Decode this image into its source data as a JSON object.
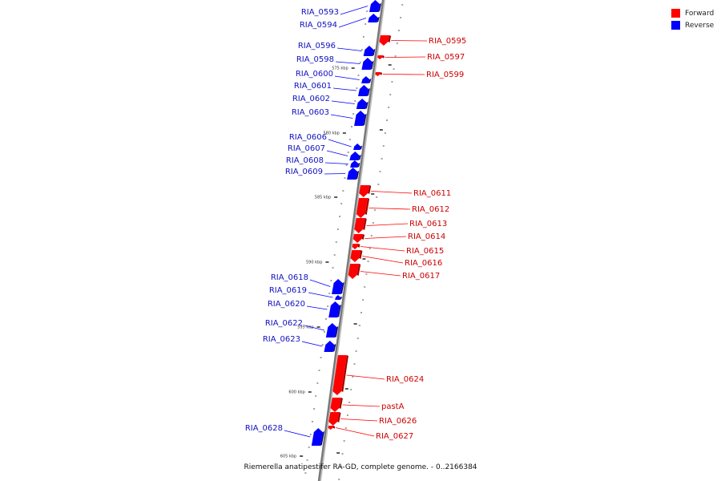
{
  "legend": {
    "forward_label": "Forward",
    "reverse_label": "Reverse",
    "forward_color": "#ff0000",
    "reverse_color": "#0000ff"
  },
  "caption": "Riemerella anatipestifer RA-GD, complete genome. - 0..2166384",
  "ticks": [
    {
      "label": "575 kbp"
    },
    {
      "label": "580 kbp"
    },
    {
      "label": "585 kbp"
    },
    {
      "label": "590 kbp"
    },
    {
      "label": "595 kbp"
    },
    {
      "label": "600 kbp"
    },
    {
      "label": "605 kbp"
    }
  ],
  "genes": [
    {
      "name": "RIA_0593",
      "strand": "reverse"
    },
    {
      "name": "RIA_0594",
      "strand": "reverse"
    },
    {
      "name": "RIA_0595",
      "strand": "forward"
    },
    {
      "name": "RIA_0596",
      "strand": "reverse"
    },
    {
      "name": "RIA_0597",
      "strand": "forward"
    },
    {
      "name": "RIA_0598",
      "strand": "reverse"
    },
    {
      "name": "RIA_0599",
      "strand": "forward"
    },
    {
      "name": "RIA_0600",
      "strand": "reverse"
    },
    {
      "name": "RIA_0601",
      "strand": "reverse"
    },
    {
      "name": "RIA_0602",
      "strand": "reverse"
    },
    {
      "name": "RIA_0603",
      "strand": "reverse"
    },
    {
      "name": "RIA_0606",
      "strand": "reverse"
    },
    {
      "name": "RIA_0607",
      "strand": "reverse"
    },
    {
      "name": "RIA_0608",
      "strand": "reverse"
    },
    {
      "name": "RIA_0609",
      "strand": "reverse"
    },
    {
      "name": "RIA_0611",
      "strand": "forward"
    },
    {
      "name": "RIA_0612",
      "strand": "forward"
    },
    {
      "name": "RIA_0613",
      "strand": "forward"
    },
    {
      "name": "RIA_0614",
      "strand": "forward"
    },
    {
      "name": "RIA_0615",
      "strand": "forward"
    },
    {
      "name": "RIA_0616",
      "strand": "forward"
    },
    {
      "name": "RIA_0617",
      "strand": "forward"
    },
    {
      "name": "RIA_0618",
      "strand": "reverse"
    },
    {
      "name": "RIA_0619",
      "strand": "reverse"
    },
    {
      "name": "RIA_0620",
      "strand": "reverse"
    },
    {
      "name": "RIA_0622",
      "strand": "reverse"
    },
    {
      "name": "RIA_0623",
      "strand": "reverse"
    },
    {
      "name": "RIA_0624",
      "strand": "forward"
    },
    {
      "name": "pastA",
      "strand": "forward"
    },
    {
      "name": "RIA_0626",
      "strand": "forward"
    },
    {
      "name": "RIA_0627",
      "strand": "forward"
    },
    {
      "name": "RIA_0628",
      "strand": "reverse"
    }
  ]
}
